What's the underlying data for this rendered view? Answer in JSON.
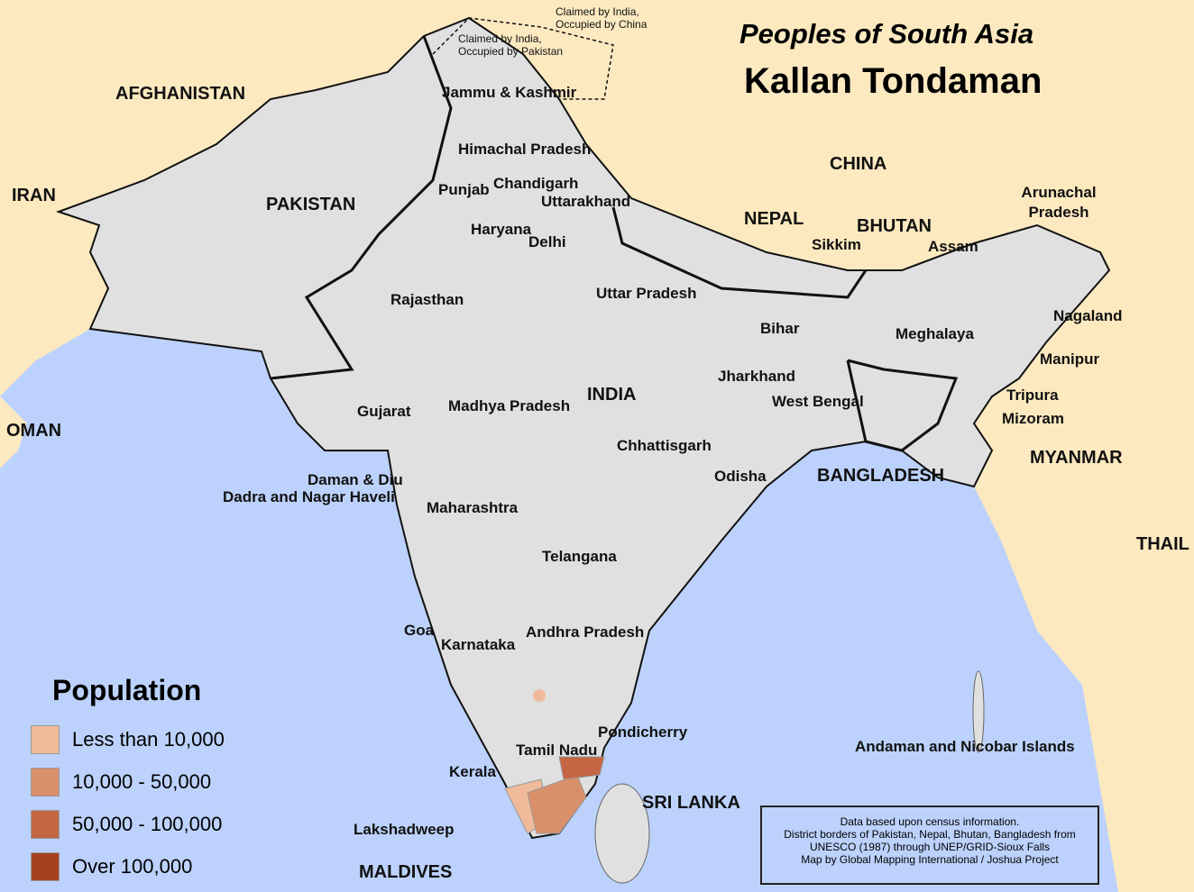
{
  "title": "Peoples of South Asia",
  "subtitle": "Kallan Tondaman",
  "colors": {
    "sea": "#bcd2fc",
    "neighbor_land": "#fde9c0",
    "region_land": "#e0e0e0",
    "border": "#111111"
  },
  "legend": {
    "title": "Population",
    "items": [
      {
        "label": "Less than 10,000",
        "color": "#efbb9a"
      },
      {
        "label": "10,000 - 50,000",
        "color": "#da8f6b"
      },
      {
        "label": "50,000 - 100,000",
        "color": "#c46544"
      },
      {
        "label": "Over 100,000",
        "color": "#a5411f"
      }
    ]
  },
  "credits": [
    "Data based upon census information.",
    "District borders of Pakistan, Nepal, Bhutan, Bangladesh from",
    "UNESCO (1987) through UNEP/GRID-Sioux Falls",
    "Map by Global Mapping International / Joshua Project"
  ],
  "countries": [
    "AFGHANISTAN",
    "IRAN",
    "PAKISTAN",
    "CHINA",
    "NEPAL",
    "BHUTAN",
    "INDIA",
    "BANGLADESH",
    "MYANMAR",
    "OMAN",
    "SRI LANKA",
    "MALDIVES",
    "THAIL"
  ],
  "regions": [
    "Jammu & Kashmir",
    "Himachal Pradesh",
    "Punjab",
    "Chandigarh",
    "Uttarakhand",
    "Haryana",
    "Delhi",
    "Rajasthan",
    "Uttar Pradesh",
    "Bihar",
    "Sikkim",
    "Assam",
    "Arunachal Pradesh",
    "Nagaland",
    "Meghalaya",
    "Manipur",
    "Tripura",
    "Mizoram",
    "Jharkhand",
    "West Bengal",
    "Gujarat",
    "Madhya Pradesh",
    "Chhattisgarh",
    "Odisha",
    "Daman & Diu",
    "Dadra and Nagar Haveli",
    "Maharashtra",
    "Telangana",
    "Goa",
    "Karnataka",
    "Andhra Pradesh",
    "Pondicherry",
    "Tamil Nadu",
    "Kerala",
    "Lakshadweep",
    "Andaman and Nicobar Islands"
  ],
  "disputed": [
    "Claimed by India, Occupied by China",
    "Claimed by India, Occupied by Pakistan"
  ]
}
